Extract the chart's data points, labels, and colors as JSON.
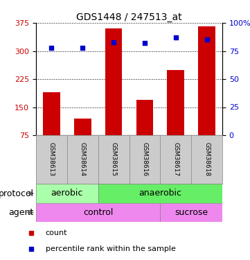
{
  "title": "GDS1448 / 247513_at",
  "samples": [
    "GSM38613",
    "GSM38614",
    "GSM38615",
    "GSM38616",
    "GSM38617",
    "GSM38618"
  ],
  "counts": [
    190,
    120,
    360,
    170,
    250,
    365
  ],
  "percentile_ranks": [
    78,
    78,
    83,
    82,
    87,
    85
  ],
  "left_ylim": [
    75,
    375
  ],
  "right_ylim": [
    0,
    100
  ],
  "left_yticks": [
    75,
    150,
    225,
    300,
    375
  ],
  "right_yticks": [
    0,
    25,
    50,
    75,
    100
  ],
  "right_yticklabels": [
    "0",
    "25",
    "50",
    "75",
    "100%"
  ],
  "bar_color": "#cc0000",
  "scatter_color": "#0000cc",
  "protocol_labels": [
    [
      "aerobic",
      0,
      2
    ],
    [
      "anaerobic",
      2,
      6
    ]
  ],
  "protocol_colors": [
    "#aaffaa",
    "#66ee66"
  ],
  "agent_labels": [
    [
      "control",
      0,
      4
    ],
    [
      "sucrose",
      4,
      6
    ]
  ],
  "agent_color": "#ee88ee",
  "label_row1": "protocol",
  "label_row2": "agent",
  "legend_count_label": "count",
  "legend_pct_label": "percentile rank within the sample",
  "bar_width": 0.55,
  "bg_color": "#ffffff",
  "sample_row_color": "#cccccc",
  "title_fontsize": 10,
  "tick_fontsize": 8,
  "label_fontsize": 9,
  "row_label_fontsize": 9
}
